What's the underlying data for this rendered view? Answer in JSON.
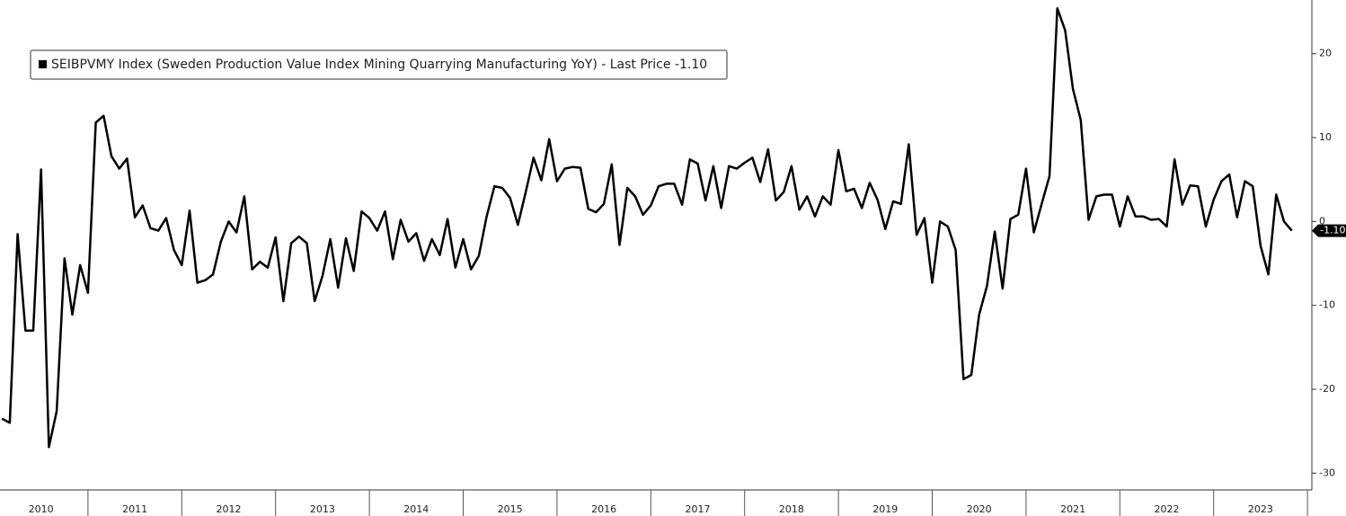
{
  "chart_data": {
    "type": "line",
    "series": [
      {
        "name": "SEIBPVMY Index (Sweden Production Value Index Mining Quarrying Manufacturing YoY) - Last Price -1.10",
        "color": "#000000",
        "values": [
          -23.5,
          -24,
          -1.5,
          -13,
          -13,
          6.2,
          -26.9,
          -22.6,
          -4.4,
          -11.1,
          -5.2,
          -8.5,
          11.8,
          12.6,
          7.8,
          6.3,
          7.5,
          0.5,
          1.9,
          -0.8,
          -1.1,
          0.4,
          -3.4,
          -5.2,
          1.3,
          -7.3,
          -7,
          -6.3,
          -2.4,
          0,
          -1.3,
          3,
          -5.7,
          -4.8,
          -5.5,
          -1.9,
          -9.5,
          -2.6,
          -1.8,
          -2.6,
          -9.5,
          -6.5,
          -2.1,
          -7.9,
          -2,
          -5.9,
          1.2,
          0.4,
          -1.1,
          1.2,
          -4.5,
          0.2,
          -2.4,
          -1.4,
          -4.7,
          -2.1,
          -4,
          0.3,
          -5.5,
          -2.1,
          -5.7,
          -4.1,
          0.6,
          4.2,
          4,
          2.8,
          -0.4,
          3.5,
          7.6,
          4.9,
          9.8,
          4.8,
          6.3,
          6.5,
          6.4,
          1.5,
          1.1,
          2.1,
          6.8,
          -2.8,
          4,
          3,
          0.8,
          1.9,
          4.2,
          4.5,
          4.5,
          2,
          7.4,
          6.9,
          2.5,
          6.6,
          1.6,
          6.6,
          6.3,
          7,
          7.6,
          4.7,
          8.6,
          2.5,
          3.5,
          6.6,
          1.4,
          3,
          0.6,
          3,
          2,
          8.5,
          3.6,
          3.9,
          1.6,
          4.6,
          2.6,
          -0.9,
          2.4,
          2.1,
          9.2,
          -1.6,
          0.4,
          -7.3,
          0,
          -0.6,
          -3.4,
          -18.8,
          -18.3,
          -11.1,
          -7.7,
          -1.2,
          -8,
          0.3,
          0.8,
          6.3,
          -1.3,
          2.1,
          5.4,
          25.4,
          22.8,
          15.8,
          12.1,
          0.2,
          3,
          3.2,
          3.2,
          -0.6,
          3,
          0.6,
          0.6,
          0.2,
          0.3,
          -0.6,
          7.4,
          2,
          4.3,
          4.2,
          -0.6,
          2.6,
          4.8,
          5.6,
          0.5,
          4.8,
          4.2,
          -2.9,
          -6.3,
          3.2,
          0,
          -1.1
        ],
        "value_labels": {
          "165": "-1.10"
        }
      }
    ],
    "categories": [
      null,
      null,
      null,
      null,
      null,
      "2010",
      null,
      null,
      null,
      null,
      null,
      null,
      null,
      null,
      null,
      null,
      null,
      "2011",
      null,
      null,
      null,
      null,
      null,
      null,
      null,
      null,
      null,
      null,
      null,
      "2012",
      null,
      null,
      null,
      null,
      null,
      null,
      null,
      null,
      null,
      null,
      null,
      "2013",
      null,
      null,
      null,
      null,
      null,
      null,
      null,
      null,
      null,
      null,
      null,
      "2014",
      null,
      null,
      null,
      null,
      null,
      null,
      null,
      null,
      null,
      null,
      null,
      "2015",
      null,
      null,
      null,
      null,
      null,
      null,
      null,
      null,
      null,
      null,
      null,
      "2016",
      null,
      null,
      null,
      null,
      null,
      null,
      null,
      null,
      null,
      null,
      null,
      "2017",
      null,
      null,
      null,
      null,
      null,
      null,
      null,
      null,
      null,
      null,
      null,
      "2018",
      null,
      null,
      null,
      null,
      null,
      null,
      null,
      null,
      null,
      null,
      null,
      "2019",
      null,
      null,
      null,
      null,
      null,
      null,
      null,
      null,
      null,
      null,
      null,
      "2020",
      null,
      null,
      null,
      null,
      null,
      null,
      null,
      null,
      null,
      null,
      null,
      "2021",
      null,
      null,
      null,
      null,
      null,
      null,
      null,
      null,
      null,
      null,
      null,
      "2022",
      null,
      null,
      null,
      null,
      null,
      null,
      null,
      null,
      null,
      null,
      null,
      "2023",
      null,
      null,
      null,
      null
    ],
    "ylim": [
      -32,
      26.4
    ],
    "yticks": [
      -30,
      -20,
      -10,
      0,
      10,
      20
    ],
    "legend": "upper left"
  }
}
